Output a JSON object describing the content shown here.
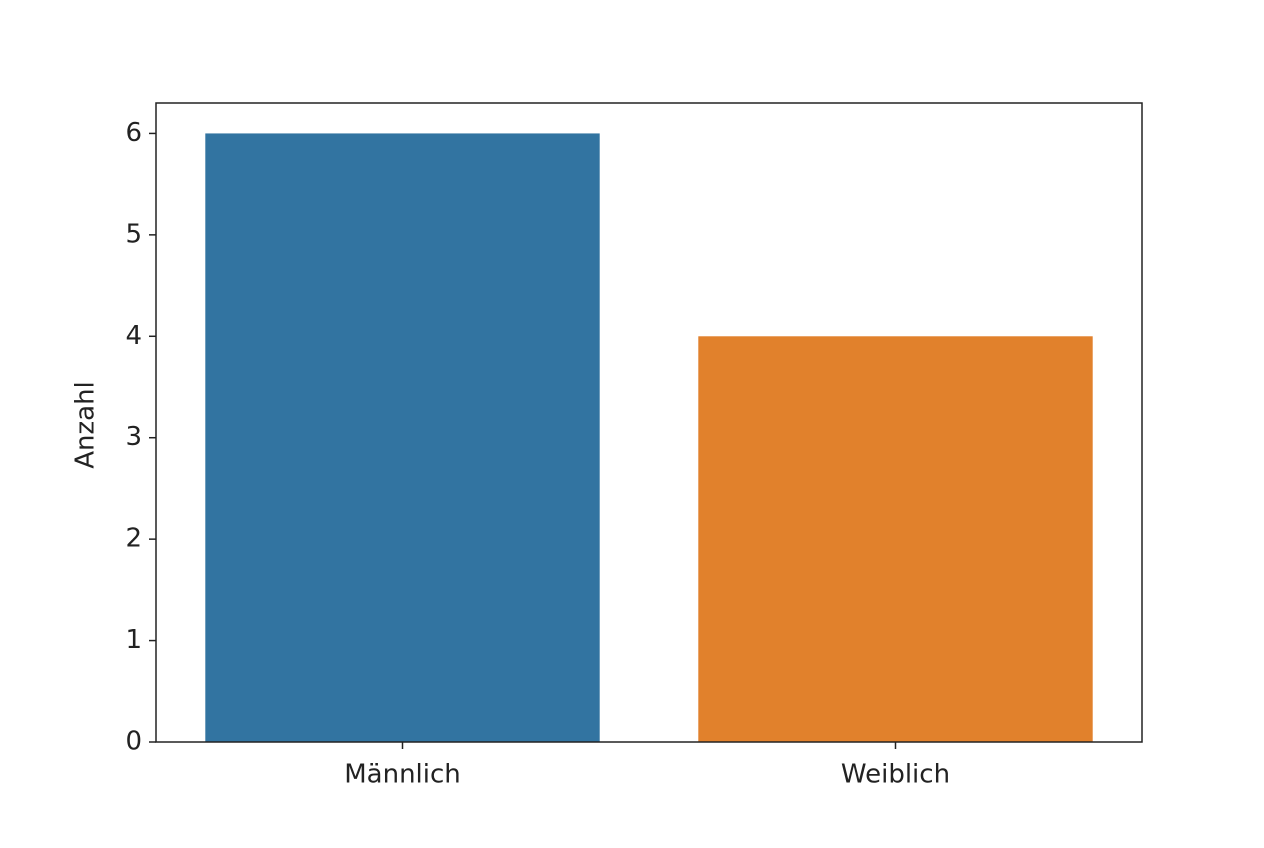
{
  "chart_data": {
    "type": "bar",
    "ylabel": "Anzahl",
    "categories": [
      "Männlich",
      "Weiblich"
    ],
    "values": [
      6,
      4
    ],
    "colors": [
      "#3274a1",
      "#e1812c"
    ],
    "ylim": [
      0,
      6.3
    ],
    "yticks": [
      0,
      1,
      2,
      3,
      4,
      5,
      6
    ],
    "grid": false
  }
}
